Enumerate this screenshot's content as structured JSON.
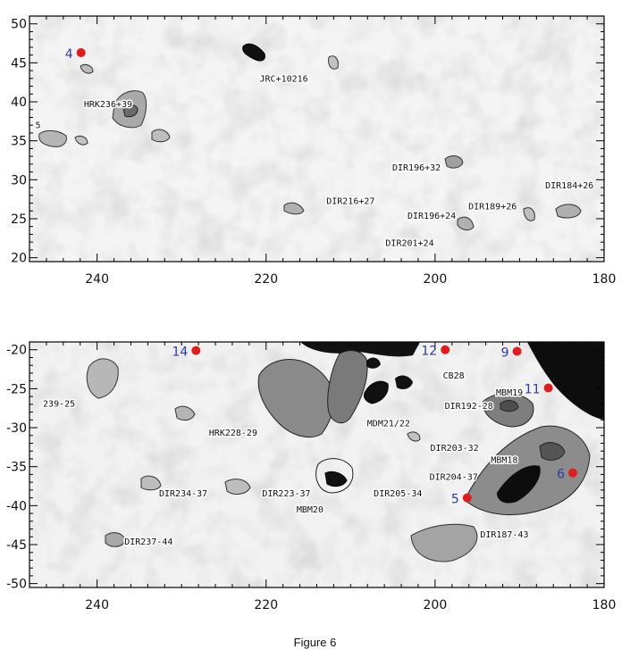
{
  "caption": "Figure 6",
  "chart_data": [
    {
      "type": "scatter",
      "panel": "top",
      "xlim": [
        248,
        180
      ],
      "ylim": [
        19.5,
        51
      ],
      "x_ticks": [
        "240",
        "220",
        "200",
        "180"
      ],
      "x_tick_values": [
        240,
        220,
        200,
        180
      ],
      "y_ticks": [
        "20",
        "25",
        "30",
        "35",
        "40",
        "45",
        "50"
      ],
      "y_tick_values": [
        20,
        25,
        30,
        35,
        40,
        45,
        50
      ],
      "markers": [
        {
          "label": "4",
          "x": 241.9,
          "y": 46.3
        }
      ],
      "cloud_labels": [
        {
          "label": "HRK236+39",
          "x": 238.7,
          "y": 39.3
        },
        {
          "label": "JRC+10216",
          "x": 217.9,
          "y": 42.6
        },
        {
          "label": "DIR196+32",
          "x": 202.2,
          "y": 31.2
        },
        {
          "label": "DIR216+27",
          "x": 210.0,
          "y": 26.9
        },
        {
          "label": "DIR196+24",
          "x": 200.4,
          "y": 25.0
        },
        {
          "label": "DIR189+26",
          "x": 193.2,
          "y": 26.2
        },
        {
          "label": "DIR184+26",
          "x": 184.1,
          "y": 28.9
        },
        {
          "label": "DIR201+24",
          "x": 203.0,
          "y": 21.5
        },
        {
          "label": "5",
          "x": 247.0,
          "y": 36.6
        }
      ]
    },
    {
      "type": "scatter",
      "panel": "bottom",
      "xlim": [
        248,
        180
      ],
      "ylim": [
        -50.5,
        -19
      ],
      "x_ticks": [
        "240",
        "220",
        "200",
        "180"
      ],
      "x_tick_values": [
        240,
        220,
        200,
        180
      ],
      "y_ticks": [
        "-20",
        "-25",
        "-30",
        "-35",
        "-40",
        "-45",
        "-50"
      ],
      "y_tick_values": [
        -20,
        -25,
        -30,
        -35,
        -40,
        -45,
        -50
      ],
      "markers": [
        {
          "label": "14",
          "x": 228.3,
          "y": -20.1
        },
        {
          "label": "12",
          "x": 198.8,
          "y": -20.0
        },
        {
          "label": "9",
          "x": 190.3,
          "y": -20.2
        },
        {
          "label": "11",
          "x": 186.6,
          "y": -24.9
        },
        {
          "label": "5",
          "x": 196.2,
          "y": -39.0
        },
        {
          "label": "6",
          "x": 183.7,
          "y": -35.8
        }
      ],
      "cloud_labels": [
        {
          "label": "239-25",
          "x": 244.5,
          "y": -27.3
        },
        {
          "label": "CB28",
          "x": 197.8,
          "y": -23.7
        },
        {
          "label": "MBM19",
          "x": 191.2,
          "y": -25.9
        },
        {
          "label": "DIR192-28",
          "x": 196.0,
          "y": -27.6
        },
        {
          "label": "MDM21/22",
          "x": 205.5,
          "y": -29.8
        },
        {
          "label": "HRK228-29",
          "x": 223.9,
          "y": -31.0
        },
        {
          "label": "DIR203-32",
          "x": 197.7,
          "y": -33.0
        },
        {
          "label": "MBM18",
          "x": 191.8,
          "y": -34.5
        },
        {
          "label": "DIR204-37",
          "x": 197.8,
          "y": -36.7
        },
        {
          "label": "DIR234-37",
          "x": 229.8,
          "y": -38.8
        },
        {
          "label": "DIR223-37",
          "x": 217.6,
          "y": -38.8
        },
        {
          "label": "DIR205-34",
          "x": 204.4,
          "y": -38.8
        },
        {
          "label": "MBM20",
          "x": 214.8,
          "y": -40.9
        },
        {
          "label": "DIR187-43",
          "x": 191.8,
          "y": -44.1
        },
        {
          "label": "DIR237-44",
          "x": 233.9,
          "y": -45.0
        }
      ]
    }
  ]
}
